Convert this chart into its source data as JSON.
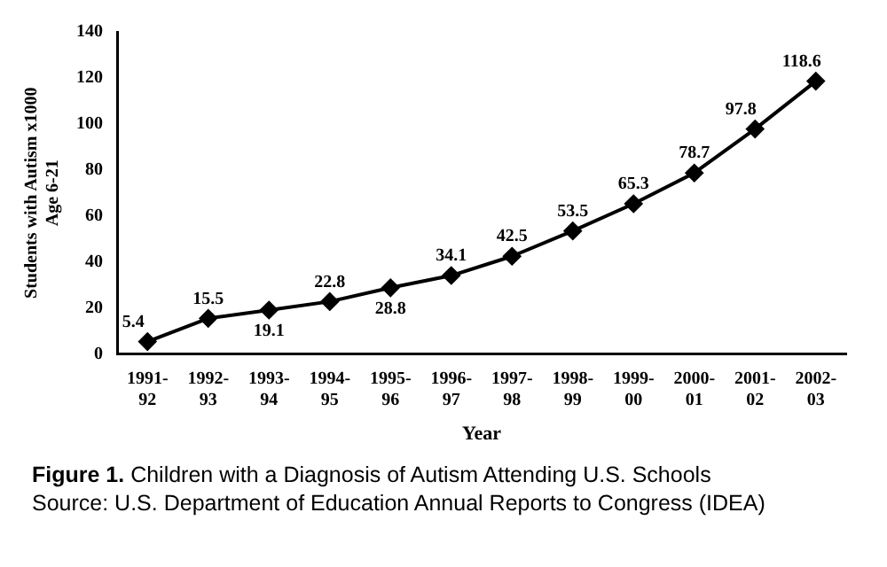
{
  "chart_data": {
    "type": "line",
    "xlabel": "Year",
    "ylabel": "Students with Autism x1000\nAge 6-21",
    "categories": [
      "1991-92",
      "1992-93",
      "1993-94",
      "1994-95",
      "1995-96",
      "1996-97",
      "1997-98",
      "1998-99",
      "1999-00",
      "2000-01",
      "2001-02",
      "2002-03"
    ],
    "series": [
      {
        "color": "#000000",
        "values": [
          5.4,
          15.5,
          19.1,
          22.8,
          28.8,
          34.1,
          42.5,
          53.5,
          65.3,
          78.7,
          97.8,
          118.6
        ]
      }
    ],
    "ylim": [
      0,
      140
    ],
    "yticks": [
      0,
      20,
      40,
      60,
      80,
      100,
      120,
      140
    ],
    "grid": false,
    "legend": false,
    "marker": "diamond",
    "line_style": "solid",
    "data_labels": true,
    "annotations": [
      "Figure 1. Children with a Diagnosis of Autism Attending U.S. Schools",
      "Source: U.S. Department of Education Annual Reports to Congress (IDEA)"
    ]
  }
}
